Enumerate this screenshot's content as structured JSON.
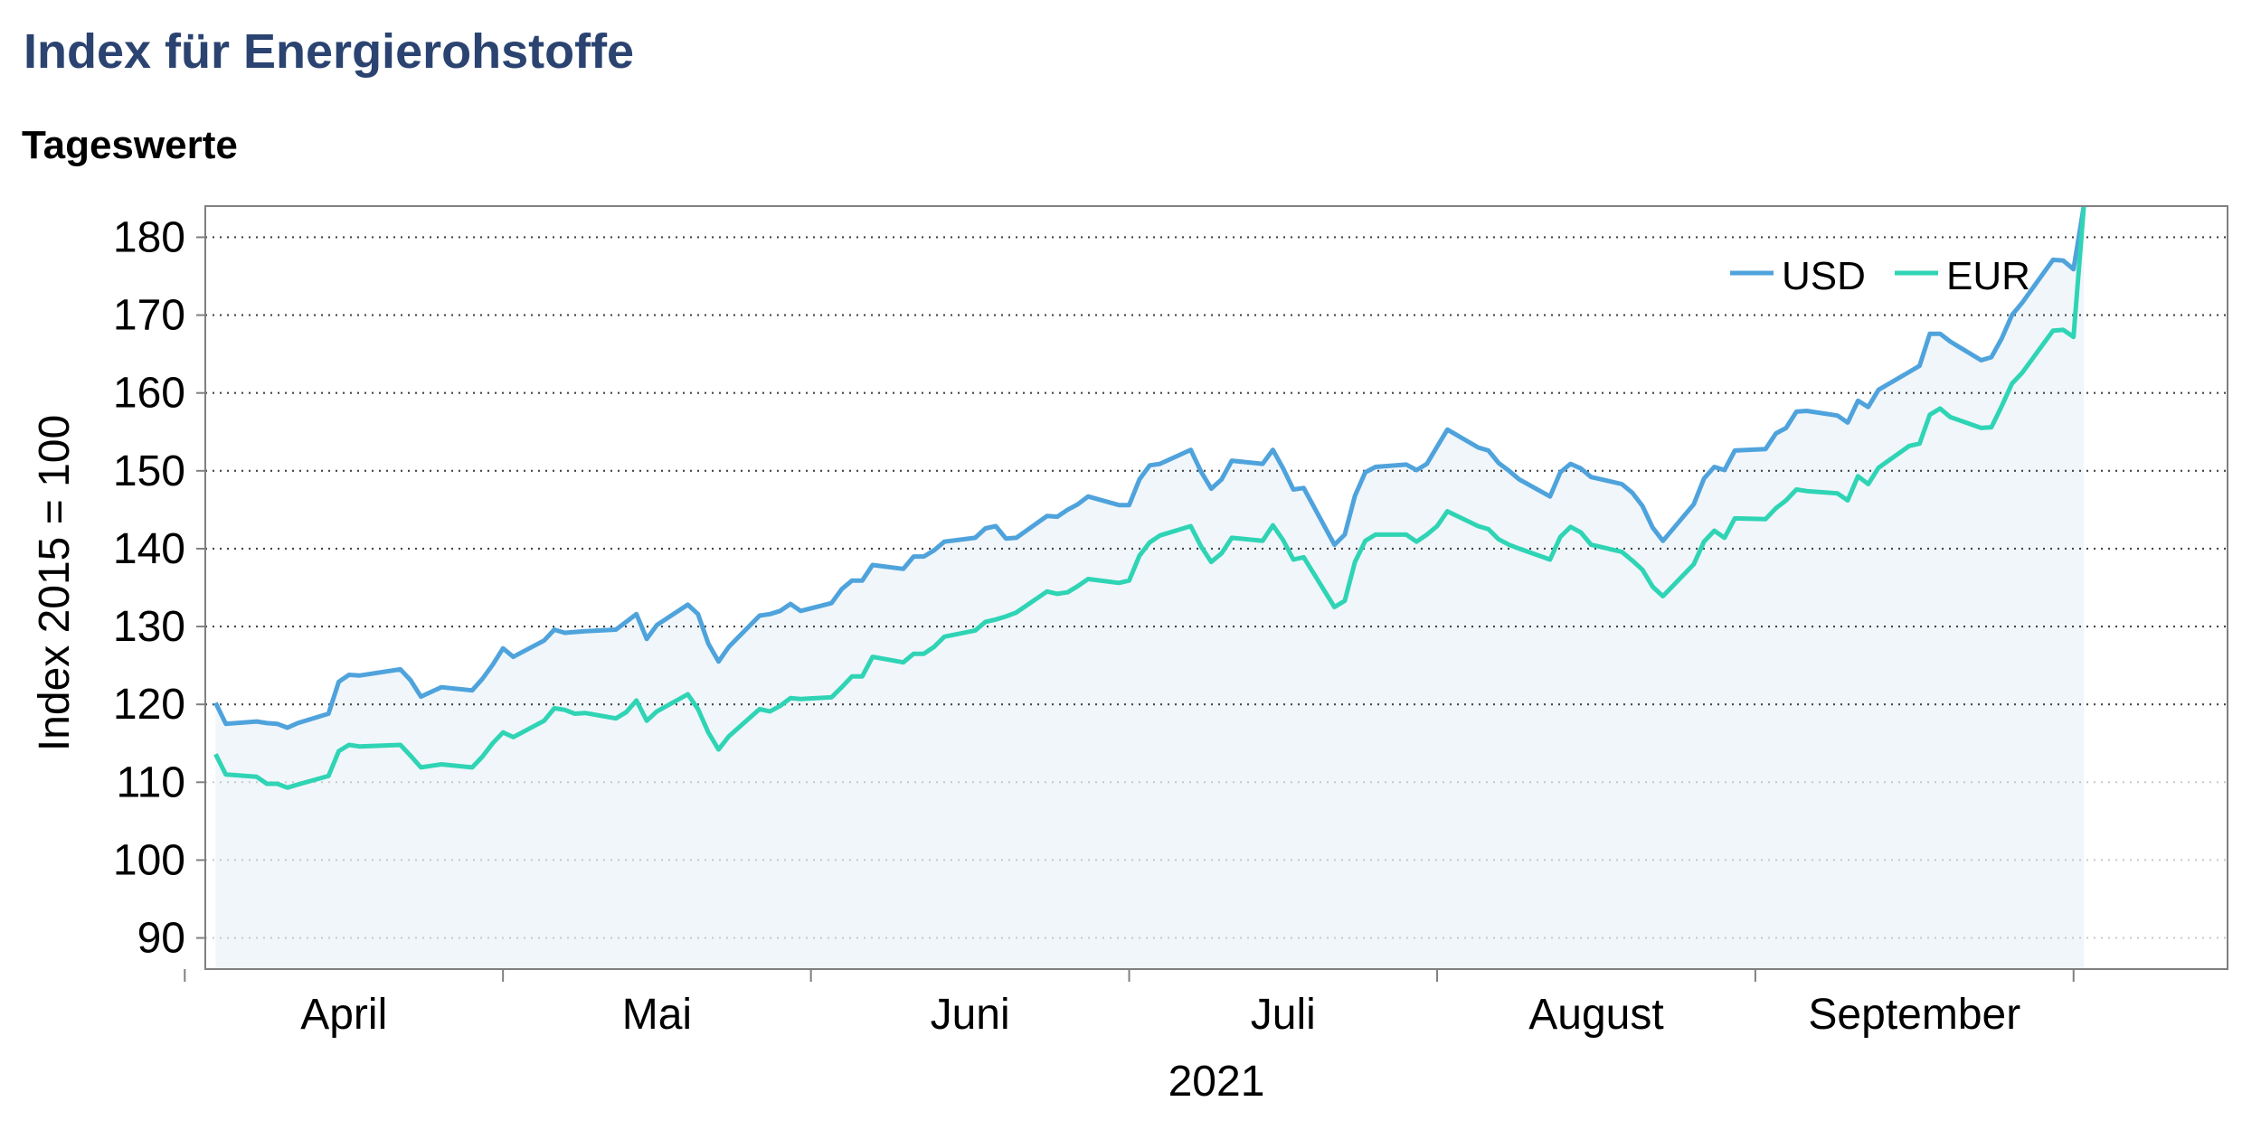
{
  "title": "Index für Energierohstoffe",
  "subtitle": "Tageswerte",
  "chart_data": {
    "type": "line",
    "ylabel": "Index 2015 = 100",
    "xlabel": "2021",
    "ylim": [
      86,
      184
    ],
    "y_ticks": [
      90,
      100,
      110,
      120,
      130,
      140,
      150,
      160,
      170,
      180
    ],
    "x_range": [
      "2021-03-17",
      "2021-09-30"
    ],
    "x_ticks": [
      "2021-03-15",
      "2021-04-15",
      "2021-05-15",
      "2021-06-15",
      "2021-07-15",
      "2021-08-15",
      "2021-09-15"
    ],
    "x_tick_labels": [
      "April",
      "Mai",
      "Juni",
      "Juli",
      "August",
      "September"
    ],
    "grid": "horizontal dotted",
    "legend_position": "top-right",
    "colors": {
      "USD": "#4fa3dc",
      "EUR": "#2fd4b5",
      "fill": "#f0f6fa",
      "axis": "#808080"
    },
    "series": [
      {
        "name": "USD",
        "points": [
          [
            "2021-03-18",
            120.2
          ],
          [
            "2021-03-19",
            117.5
          ],
          [
            "2021-03-22",
            117.8
          ],
          [
            "2021-03-23",
            117.6
          ],
          [
            "2021-03-24",
            117.5
          ],
          [
            "2021-03-25",
            117.0
          ],
          [
            "2021-03-26",
            117.6
          ],
          [
            "2021-03-29",
            118.8
          ],
          [
            "2021-03-30",
            122.9
          ],
          [
            "2021-03-31",
            123.8
          ],
          [
            "2021-04-01",
            123.7
          ],
          [
            "2021-04-05",
            124.5
          ],
          [
            "2021-04-06",
            123.1
          ],
          [
            "2021-04-07",
            121.0
          ],
          [
            "2021-04-08",
            121.6
          ],
          [
            "2021-04-09",
            122.2
          ],
          [
            "2021-04-12",
            121.8
          ],
          [
            "2021-04-13",
            123.3
          ],
          [
            "2021-04-14",
            125.1
          ],
          [
            "2021-04-15",
            127.2
          ],
          [
            "2021-04-16",
            126.1
          ],
          [
            "2021-04-19",
            128.2
          ],
          [
            "2021-04-20",
            129.6
          ],
          [
            "2021-04-21",
            129.2
          ],
          [
            "2021-04-22",
            129.3
          ],
          [
            "2021-04-23",
            129.4
          ],
          [
            "2021-04-26",
            129.6
          ],
          [
            "2021-04-27",
            130.6
          ],
          [
            "2021-04-28",
            131.6
          ],
          [
            "2021-04-29",
            128.4
          ],
          [
            "2021-04-30",
            130.2
          ],
          [
            "2021-05-03",
            132.8
          ],
          [
            "2021-05-04",
            131.6
          ],
          [
            "2021-05-05",
            127.8
          ],
          [
            "2021-05-06",
            125.5
          ],
          [
            "2021-05-07",
            127.4
          ],
          [
            "2021-05-10",
            131.4
          ],
          [
            "2021-05-11",
            131.6
          ],
          [
            "2021-05-12",
            132.0
          ],
          [
            "2021-05-13",
            132.9
          ],
          [
            "2021-05-14",
            132.0
          ],
          [
            "2021-05-17",
            133.0
          ],
          [
            "2021-05-18",
            134.8
          ],
          [
            "2021-05-19",
            135.9
          ],
          [
            "2021-05-20",
            135.9
          ],
          [
            "2021-05-21",
            137.9
          ],
          [
            "2021-05-24",
            137.4
          ],
          [
            "2021-05-25",
            139.0
          ],
          [
            "2021-05-26",
            139.0
          ],
          [
            "2021-05-27",
            139.8
          ],
          [
            "2021-05-28",
            140.9
          ],
          [
            "2021-05-31",
            141.4
          ],
          [
            "2021-06-01",
            142.6
          ],
          [
            "2021-06-02",
            142.9
          ],
          [
            "2021-06-03",
            141.3
          ],
          [
            "2021-06-04",
            141.4
          ],
          [
            "2021-06-07",
            144.2
          ],
          [
            "2021-06-08",
            144.1
          ],
          [
            "2021-06-09",
            145.0
          ],
          [
            "2021-06-10",
            145.7
          ],
          [
            "2021-06-11",
            146.7
          ],
          [
            "2021-06-14",
            145.6
          ],
          [
            "2021-06-15",
            145.6
          ],
          [
            "2021-06-16",
            148.9
          ],
          [
            "2021-06-17",
            150.7
          ],
          [
            "2021-06-18",
            150.9
          ],
          [
            "2021-06-21",
            152.7
          ],
          [
            "2021-06-22",
            149.9
          ],
          [
            "2021-06-23",
            147.7
          ],
          [
            "2021-06-24",
            148.9
          ],
          [
            "2021-06-25",
            151.3
          ],
          [
            "2021-06-28",
            150.9
          ],
          [
            "2021-06-29",
            152.7
          ],
          [
            "2021-06-30",
            150.3
          ],
          [
            "2021-07-01",
            147.6
          ],
          [
            "2021-07-02",
            147.8
          ],
          [
            "2021-07-05",
            140.5
          ],
          [
            "2021-07-06",
            141.8
          ],
          [
            "2021-07-07",
            146.8
          ],
          [
            "2021-07-08",
            149.8
          ],
          [
            "2021-07-09",
            150.5
          ],
          [
            "2021-07-12",
            150.8
          ],
          [
            "2021-07-13",
            150.1
          ],
          [
            "2021-07-14",
            150.9
          ],
          [
            "2021-07-15",
            153.1
          ],
          [
            "2021-07-16",
            155.3
          ],
          [
            "2021-07-19",
            153.0
          ],
          [
            "2021-07-20",
            152.6
          ],
          [
            "2021-07-21",
            151.0
          ],
          [
            "2021-07-22",
            150.0
          ],
          [
            "2021-07-23",
            148.9
          ],
          [
            "2021-07-26",
            146.7
          ],
          [
            "2021-07-27",
            149.8
          ],
          [
            "2021-07-28",
            150.9
          ],
          [
            "2021-07-29",
            150.3
          ],
          [
            "2021-07-30",
            149.2
          ],
          [
            "2021-08-02",
            148.3
          ],
          [
            "2021-08-03",
            147.2
          ],
          [
            "2021-08-04",
            145.5
          ],
          [
            "2021-08-05",
            142.7
          ],
          [
            "2021-08-06",
            141.0
          ],
          [
            "2021-08-09",
            145.7
          ],
          [
            "2021-08-10",
            149.0
          ],
          [
            "2021-08-11",
            150.5
          ],
          [
            "2021-08-12",
            150.1
          ],
          [
            "2021-08-13",
            152.6
          ],
          [
            "2021-08-16",
            152.8
          ],
          [
            "2021-08-17",
            154.8
          ],
          [
            "2021-08-18",
            155.5
          ],
          [
            "2021-08-19",
            157.6
          ],
          [
            "2021-08-20",
            157.7
          ],
          [
            "2021-08-23",
            157.1
          ],
          [
            "2021-08-24",
            156.2
          ],
          [
            "2021-08-25",
            159.0
          ],
          [
            "2021-08-26",
            158.2
          ],
          [
            "2021-08-27",
            160.4
          ],
          [
            "2021-08-30",
            162.7
          ],
          [
            "2021-08-31",
            163.5
          ],
          [
            "2021-09-01",
            167.6
          ],
          [
            "2021-09-02",
            167.6
          ],
          [
            "2021-09-03",
            166.6
          ],
          [
            "2021-09-06",
            164.2
          ],
          [
            "2021-09-07",
            164.6
          ],
          [
            "2021-09-08",
            167.0
          ],
          [
            "2021-09-09",
            170.0
          ],
          [
            "2021-09-10",
            171.6
          ],
          [
            "2021-09-13",
            177.1
          ],
          [
            "2021-09-14",
            177.0
          ],
          [
            "2021-09-15",
            175.9
          ],
          [
            "2021-09-16",
            184.0
          ]
        ]
      },
      {
        "name": "EUR",
        "points": [
          [
            "2021-03-18",
            113.6
          ],
          [
            "2021-03-19",
            111.0
          ],
          [
            "2021-03-22",
            110.7
          ],
          [
            "2021-03-23",
            109.8
          ],
          [
            "2021-03-24",
            109.8
          ],
          [
            "2021-03-25",
            109.3
          ],
          [
            "2021-03-26",
            109.7
          ],
          [
            "2021-03-29",
            110.8
          ],
          [
            "2021-03-30",
            114.0
          ],
          [
            "2021-03-31",
            114.8
          ],
          [
            "2021-04-01",
            114.6
          ],
          [
            "2021-04-05",
            114.8
          ],
          [
            "2021-04-06",
            113.4
          ],
          [
            "2021-04-07",
            111.9
          ],
          [
            "2021-04-08",
            112.1
          ],
          [
            "2021-04-09",
            112.3
          ],
          [
            "2021-04-12",
            111.9
          ],
          [
            "2021-04-13",
            113.3
          ],
          [
            "2021-04-14",
            115.0
          ],
          [
            "2021-04-15",
            116.4
          ],
          [
            "2021-04-16",
            115.8
          ],
          [
            "2021-04-19",
            117.9
          ],
          [
            "2021-04-20",
            119.5
          ],
          [
            "2021-04-21",
            119.3
          ],
          [
            "2021-04-22",
            118.8
          ],
          [
            "2021-04-23",
            118.9
          ],
          [
            "2021-04-26",
            118.2
          ],
          [
            "2021-04-27",
            119.0
          ],
          [
            "2021-04-28",
            120.5
          ],
          [
            "2021-04-29",
            117.9
          ],
          [
            "2021-04-30",
            119.1
          ],
          [
            "2021-05-03",
            121.3
          ],
          [
            "2021-05-04",
            119.4
          ],
          [
            "2021-05-05",
            116.4
          ],
          [
            "2021-05-06",
            114.2
          ],
          [
            "2021-05-07",
            115.9
          ],
          [
            "2021-05-10",
            119.4
          ],
          [
            "2021-05-11",
            119.1
          ],
          [
            "2021-05-12",
            119.8
          ],
          [
            "2021-05-13",
            120.8
          ],
          [
            "2021-05-14",
            120.7
          ],
          [
            "2021-05-17",
            120.9
          ],
          [
            "2021-05-18",
            122.2
          ],
          [
            "2021-05-19",
            123.6
          ],
          [
            "2021-05-20",
            123.6
          ],
          [
            "2021-05-21",
            126.1
          ],
          [
            "2021-05-24",
            125.4
          ],
          [
            "2021-05-25",
            126.5
          ],
          [
            "2021-05-26",
            126.5
          ],
          [
            "2021-05-27",
            127.4
          ],
          [
            "2021-05-28",
            128.7
          ],
          [
            "2021-05-31",
            129.5
          ],
          [
            "2021-06-01",
            130.6
          ],
          [
            "2021-06-02",
            130.9
          ],
          [
            "2021-06-03",
            131.3
          ],
          [
            "2021-06-04",
            131.8
          ],
          [
            "2021-06-07",
            134.5
          ],
          [
            "2021-06-08",
            134.2
          ],
          [
            "2021-06-09",
            134.4
          ],
          [
            "2021-06-10",
            135.2
          ],
          [
            "2021-06-11",
            136.1
          ],
          [
            "2021-06-14",
            135.6
          ],
          [
            "2021-06-15",
            135.9
          ],
          [
            "2021-06-16",
            139.1
          ],
          [
            "2021-06-17",
            140.8
          ],
          [
            "2021-06-18",
            141.7
          ],
          [
            "2021-06-21",
            142.9
          ],
          [
            "2021-06-22",
            140.3
          ],
          [
            "2021-06-23",
            138.3
          ],
          [
            "2021-06-24",
            139.4
          ],
          [
            "2021-06-25",
            141.4
          ],
          [
            "2021-06-28",
            141.0
          ],
          [
            "2021-06-29",
            143.0
          ],
          [
            "2021-06-30",
            141.1
          ],
          [
            "2021-07-01",
            138.6
          ],
          [
            "2021-07-02",
            138.9
          ],
          [
            "2021-07-05",
            132.5
          ],
          [
            "2021-07-06",
            133.3
          ],
          [
            "2021-07-07",
            138.3
          ],
          [
            "2021-07-08",
            141.0
          ],
          [
            "2021-07-09",
            141.8
          ],
          [
            "2021-07-12",
            141.8
          ],
          [
            "2021-07-13",
            140.9
          ],
          [
            "2021-07-14",
            141.8
          ],
          [
            "2021-07-15",
            142.9
          ],
          [
            "2021-07-16",
            144.8
          ],
          [
            "2021-07-19",
            142.9
          ],
          [
            "2021-07-20",
            142.5
          ],
          [
            "2021-07-21",
            141.2
          ],
          [
            "2021-07-22",
            140.5
          ],
          [
            "2021-07-23",
            140.0
          ],
          [
            "2021-07-26",
            138.6
          ],
          [
            "2021-07-27",
            141.5
          ],
          [
            "2021-07-28",
            142.8
          ],
          [
            "2021-07-29",
            142.1
          ],
          [
            "2021-07-30",
            140.5
          ],
          [
            "2021-08-02",
            139.6
          ],
          [
            "2021-08-03",
            138.5
          ],
          [
            "2021-08-04",
            137.3
          ],
          [
            "2021-08-05",
            135.1
          ],
          [
            "2021-08-06",
            133.9
          ],
          [
            "2021-08-09",
            138.0
          ],
          [
            "2021-08-10",
            140.9
          ],
          [
            "2021-08-11",
            142.3
          ],
          [
            "2021-08-12",
            141.4
          ],
          [
            "2021-08-13",
            143.9
          ],
          [
            "2021-08-16",
            143.8
          ],
          [
            "2021-08-17",
            145.2
          ],
          [
            "2021-08-18",
            146.2
          ],
          [
            "2021-08-19",
            147.6
          ],
          [
            "2021-08-20",
            147.4
          ],
          [
            "2021-08-23",
            147.1
          ],
          [
            "2021-08-24",
            146.2
          ],
          [
            "2021-08-25",
            149.3
          ],
          [
            "2021-08-26",
            148.3
          ],
          [
            "2021-08-27",
            150.4
          ],
          [
            "2021-08-30",
            153.2
          ],
          [
            "2021-08-31",
            153.5
          ],
          [
            "2021-09-01",
            157.2
          ],
          [
            "2021-09-02",
            158.0
          ],
          [
            "2021-09-03",
            156.9
          ],
          [
            "2021-09-06",
            155.5
          ],
          [
            "2021-09-07",
            155.6
          ],
          [
            "2021-09-08",
            158.3
          ],
          [
            "2021-09-09",
            161.2
          ],
          [
            "2021-09-10",
            162.6
          ],
          [
            "2021-09-13",
            168.0
          ],
          [
            "2021-09-14",
            168.1
          ],
          [
            "2021-09-15",
            167.2
          ],
          [
            "2021-09-16",
            184.0
          ]
        ]
      }
    ]
  }
}
